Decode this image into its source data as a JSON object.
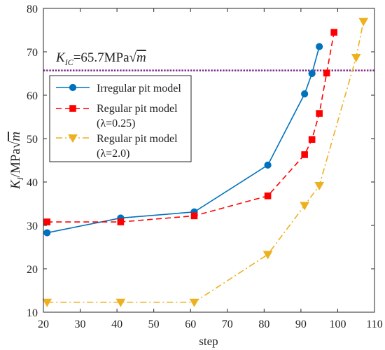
{
  "chart_data": {
    "type": "line",
    "title": "",
    "xlabel": "step",
    "ylabel_main": "K",
    "ylabel_sub": "I",
    "ylabel_unit": "/MPa",
    "ylabel_root": "m",
    "xlim": [
      20,
      110
    ],
    "ylim": [
      10,
      80
    ],
    "xticks": [
      20,
      30,
      40,
      50,
      60,
      70,
      80,
      90,
      100,
      110
    ],
    "yticks": [
      10,
      20,
      30,
      40,
      50,
      60,
      70,
      80
    ],
    "grid": false,
    "reference_line": {
      "y": 65.7,
      "color": "#7e2f8e",
      "label_main": "K",
      "label_sub": "IC",
      "label_value": "=65.7MPa",
      "label_root": "m"
    },
    "legend_position": "upper-left",
    "series": [
      {
        "name": "Irregular pit model",
        "name_line2": "",
        "color": "#0072bd",
        "dash": "solid",
        "marker": "circle",
        "x": [
          21,
          41,
          61,
          81,
          91,
          93,
          95
        ],
        "y": [
          28.3,
          31.7,
          33.1,
          43.9,
          60.3,
          65.0,
          71.2
        ]
      },
      {
        "name": "Regular pit model",
        "name_line2": "(λ=0.25)",
        "color": "#ff0000",
        "dash": "dashed",
        "marker": "square",
        "x": [
          21,
          41,
          61,
          81,
          91,
          93,
          95,
          97,
          99
        ],
        "y": [
          30.8,
          30.8,
          32.2,
          36.8,
          46.3,
          49.8,
          55.8,
          65.1,
          74.5
        ]
      },
      {
        "name": "Regular pit model",
        "name_line2": "(λ=2.0)",
        "color": "#edb120",
        "dash": "dashdot",
        "marker": "triangle-down",
        "x": [
          21,
          41,
          61,
          81,
          91,
          95,
          105,
          107
        ],
        "y": [
          12.3,
          12.3,
          12.3,
          23.3,
          34.6,
          39.2,
          68.7,
          77.0
        ]
      }
    ]
  }
}
